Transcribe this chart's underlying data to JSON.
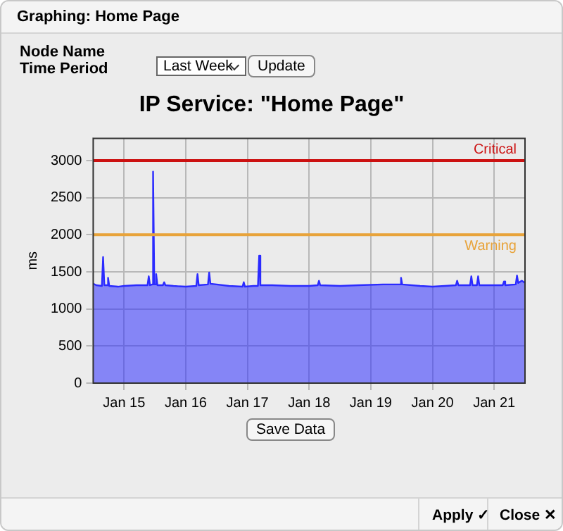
{
  "chart_data": {
    "type": "area",
    "title": "IP Service: \"Home Page\"",
    "ylabel": "ms",
    "annotations": [
      "Graphing: Home Page",
      "Node Name",
      "Time Period",
      "Last Week",
      "Update",
      "Save Data",
      "Apply ✓",
      "Close ✕"
    ],
    "series": [
      {
        "color": "#2b2bff",
        "x": [
          "--01-14T12:00",
          "--01-14T13:12",
          "--01-14T15:22",
          "--01-14T15:50",
          "--01-14T16:19",
          "--01-14T17:31",
          "--01-14T17:46",
          "--01-14T18:14",
          "--01-14T21:36",
          "--01-15T00:00",
          "--01-15T04:48",
          "--01-15T09:07",
          "--01-15T09:36",
          "--01-15T10:05",
          "--01-15T11:02",
          "--01-15T11:17",
          "--01-15T11:46",
          "--01-15T12:14",
          "--01-15T12:29",
          "--01-15T12:58",
          "--01-15T15:07",
          "--01-15T15:36",
          "--01-15T16:05",
          "--01-15T19:12",
          "--01-16T00:00",
          "--01-16T04:05",
          "--01-16T04:34",
          "--01-16T05:02",
          "--01-16T08:38",
          "--01-16T09:07",
          "--01-16T09:36",
          "--01-16T12:00",
          "--01-16T16:48",
          "--01-16T22:05",
          "--01-16T22:34",
          "--01-16T23:02",
          "--01-17T02:24",
          "--01-17T04:05",
          "--01-17T04:34",
          "--01-17T05:02",
          "--01-17T09:36",
          "--01-17T16:48",
          "--01-18T00:00",
          "--01-18T03:22",
          "--01-18T03:50",
          "--01-18T04:19",
          "--01-18T12:00",
          "--01-18T19:12",
          "--01-19T04:48",
          "--01-19T11:17",
          "--01-19T11:46",
          "--01-19T12:14",
          "--01-19T19:12",
          "--01-20T00:00",
          "--01-20T04:48",
          "--01-20T09:07",
          "--01-20T09:36",
          "--01-20T10:05",
          "--01-20T14:38",
          "--01-20T15:07",
          "--01-20T15:36",
          "--01-20T17:17",
          "--01-20T17:46",
          "--01-20T18:14",
          "--01-21T00:00",
          "--01-21T03:22",
          "--01-21T03:50",
          "--01-21T04:19",
          "--01-21T08:24",
          "--01-21T08:53",
          "--01-21T09:22",
          "--01-21T10:48",
          "--01-21T12:00"
        ],
        "values": [
          1340,
          1320,
          1310,
          1700,
          1320,
          1320,
          1420,
          1310,
          1300,
          1310,
          1320,
          1320,
          1440,
          1320,
          1330,
          2850,
          1330,
          1330,
          1470,
          1320,
          1320,
          1360,
          1320,
          1310,
          1300,
          1310,
          1470,
          1320,
          1330,
          1490,
          1340,
          1330,
          1310,
          1300,
          1360,
          1300,
          1310,
          1310,
          1720,
          1320,
          1320,
          1310,
          1310,
          1320,
          1380,
          1320,
          1310,
          1320,
          1330,
          1330,
          1420,
          1330,
          1310,
          1300,
          1310,
          1320,
          1380,
          1320,
          1320,
          1440,
          1320,
          1320,
          1440,
          1320,
          1320,
          1320,
          1370,
          1320,
          1330,
          1450,
          1350,
          1380,
          1350
        ]
      }
    ],
    "xlim": [
      "--01-14T12:00",
      "--01-21T12:00"
    ],
    "xticks": [
      {
        "value": "--01-15",
        "label": "Jan 15"
      },
      {
        "value": "--01-16",
        "label": "Jan 16"
      },
      {
        "value": "--01-17",
        "label": "Jan 17"
      },
      {
        "value": "--01-18",
        "label": "Jan 18"
      },
      {
        "value": "--01-19",
        "label": "Jan 19"
      },
      {
        "value": "--01-20",
        "label": "Jan 20"
      },
      {
        "value": "--01-21",
        "label": "Jan 21"
      }
    ],
    "ylim": [
      0,
      3300
    ],
    "yticks": [
      0,
      500,
      1000,
      1500,
      2000,
      2500,
      3000
    ],
    "ref_lines": [
      {
        "axis": "y",
        "value": 3000,
        "label": "Critical",
        "color": "#cc1111"
      },
      {
        "axis": "y",
        "value": 2000,
        "label": "Warning",
        "color": "#e8a33a"
      }
    ],
    "grid": true,
    "legend": false,
    "marker": "none",
    "line_style": "solid"
  }
}
